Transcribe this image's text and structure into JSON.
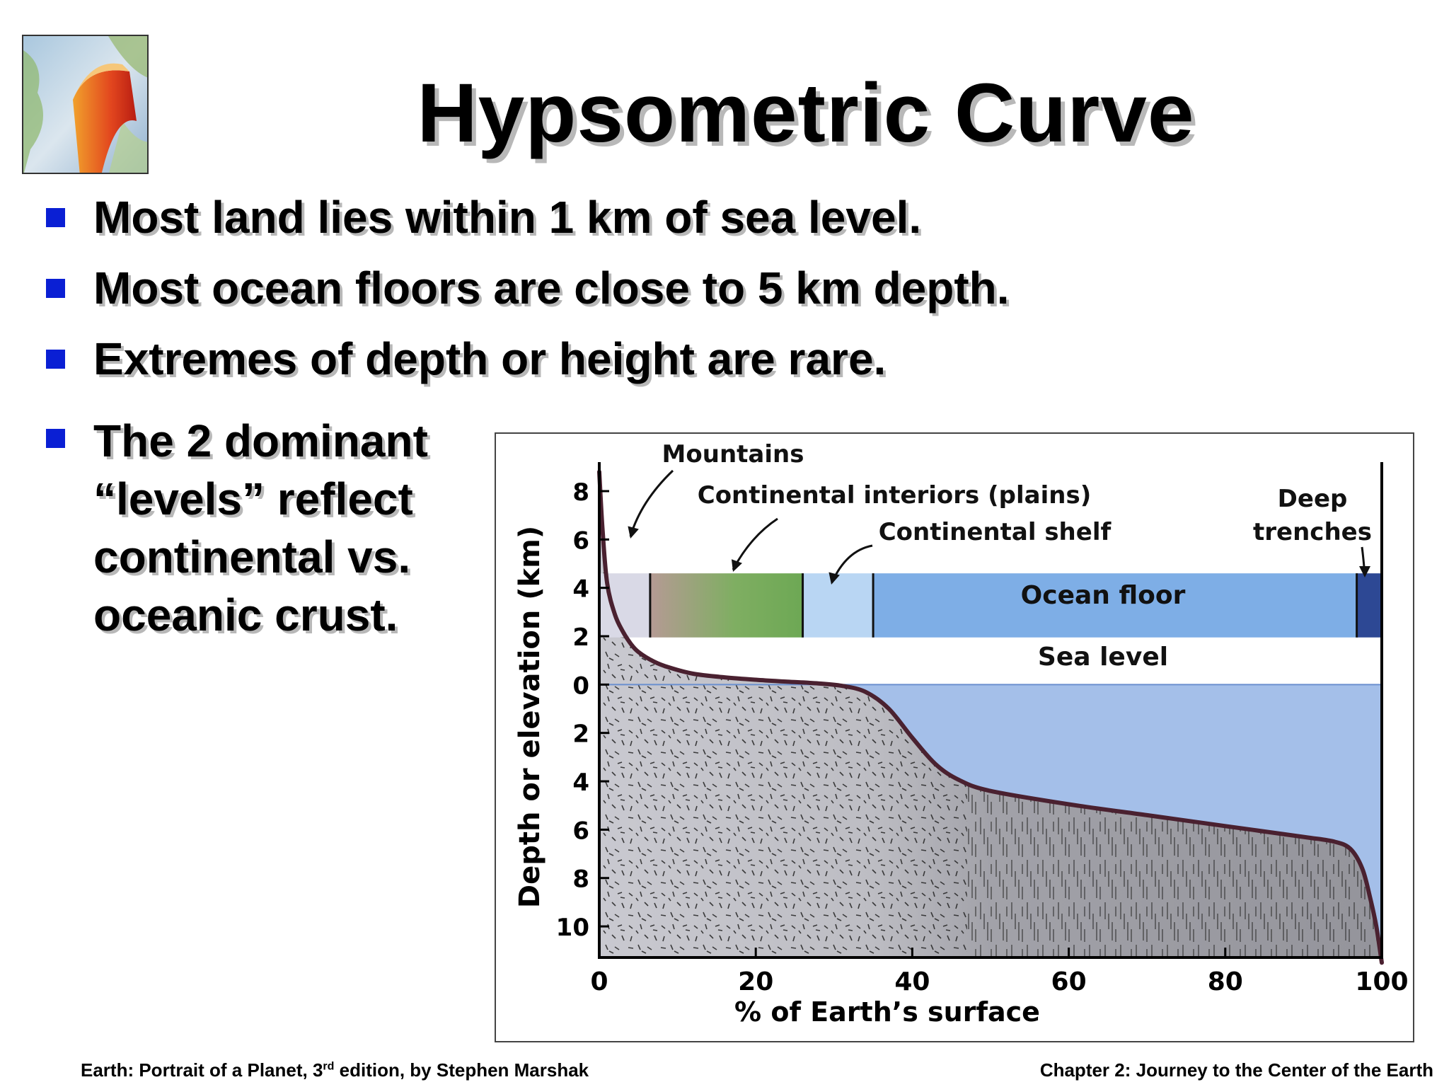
{
  "slide": {
    "title": "Hypsometric Curve",
    "bullets": [
      "Most land lies within 1 km of sea level.",
      "Most ocean floors are close to 5 km depth.",
      "Extremes of depth or height are rare.",
      "The 2 dominant “levels” reflect continental vs. oceanic crust."
    ],
    "footer_left_pre": "Earth: Portrait of a Planet, 3",
    "footer_left_sup": "rd",
    "footer_left_post": " edition, by Stephen Marshak",
    "footer_right": "Chapter 2: Journey to the Center of the Earth",
    "bullet_color": "#0a1fd4"
  },
  "chart_data": {
    "type": "area",
    "xlabel": "% of Earth’s surface",
    "ylabel": "Depth or elevation (km)",
    "xlim": [
      0,
      100
    ],
    "ylim": [
      -11.5,
      9
    ],
    "xticks": [
      0,
      20,
      40,
      60,
      80,
      100
    ],
    "yticks": [
      {
        "value": 8,
        "label": "8"
      },
      {
        "value": 6,
        "label": "6"
      },
      {
        "value": 4,
        "label": "4"
      },
      {
        "value": 2,
        "label": "2"
      },
      {
        "value": 0,
        "label": "0"
      },
      {
        "value": -2,
        "label": "2"
      },
      {
        "value": -4,
        "label": "4"
      },
      {
        "value": -6,
        "label": "6"
      },
      {
        "value": -8,
        "label": "8"
      },
      {
        "value": -10,
        "label": "10"
      }
    ],
    "x": [
      0,
      0.4,
      1,
      2,
      3,
      4,
      5,
      7,
      9,
      12,
      16,
      20,
      24,
      28,
      31,
      34,
      37,
      40,
      43,
      46,
      50,
      60,
      70,
      80,
      90,
      94,
      96,
      97.5,
      98.5,
      99.3,
      100
    ],
    "y": [
      8.8,
      6.5,
      4.2,
      2.9,
      2.2,
      1.7,
      1.35,
      0.95,
      0.7,
      0.45,
      0.3,
      0.2,
      0.12,
      0.05,
      -0.05,
      -0.3,
      -1.0,
      -2.2,
      -3.3,
      -3.95,
      -4.4,
      -4.95,
      -5.4,
      -5.85,
      -6.3,
      -6.5,
      -6.8,
      -7.6,
      -8.8,
      -10.0,
      -11.5
    ],
    "continent_ocean_boundary_pct": 47,
    "sea_level": 0,
    "band_categories": [
      {
        "name": "",
        "x": [
          0,
          6.5
        ],
        "color": "#d9d9e6"
      },
      {
        "name": "Continental interiors (plains)",
        "x": [
          6.5,
          26
        ],
        "color": "#7fae62"
      },
      {
        "name": "Continental shelf",
        "x": [
          26,
          35
        ],
        "color": "#b9d6f3"
      },
      {
        "name": "Ocean floor",
        "x": [
          35,
          96.8
        ],
        "color": "#7eaee6"
      },
      {
        "name": "Deep trenches",
        "x": [
          96.8,
          100
        ],
        "color": "#2d4894"
      }
    ],
    "annotations": [
      "Mountains",
      "Continental interiors (plains)",
      "Continental shelf",
      "Deep trenches",
      "Ocean floor",
      "Sea level"
    ]
  }
}
